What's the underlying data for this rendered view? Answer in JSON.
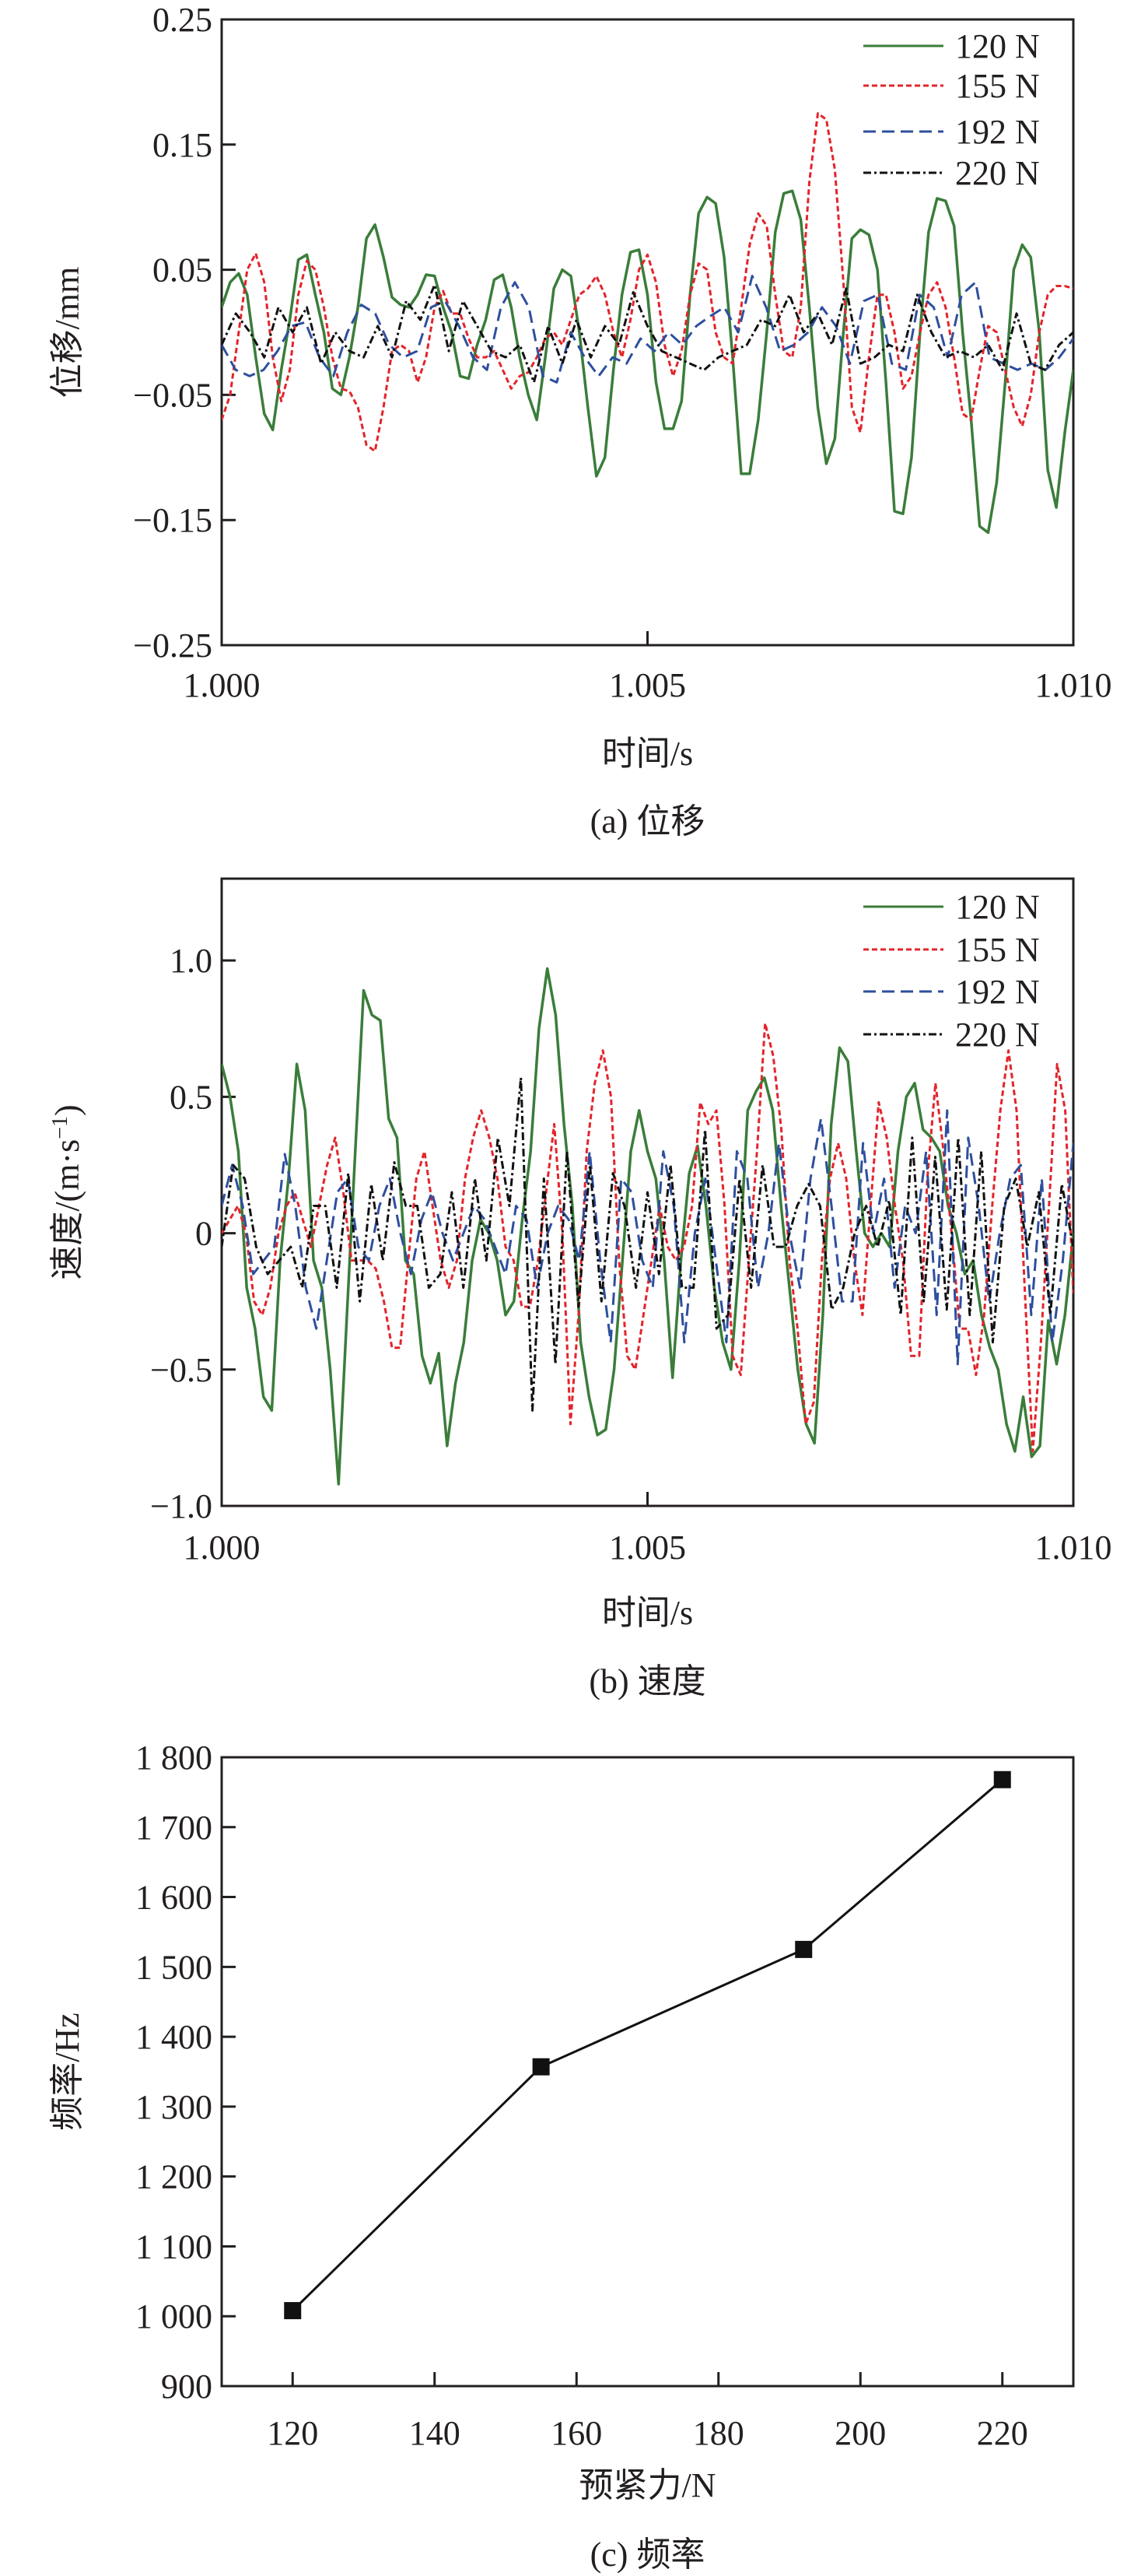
{
  "chart_data": [
    {
      "type": "line",
      "title": "",
      "caption": "(a) 位移",
      "xlabel": "时间/s",
      "ylabel": "位移/mm",
      "xlim": [
        1.0,
        1.01
      ],
      "ylim": [
        -0.25,
        0.25
      ],
      "xticks": [
        1.0,
        1.005,
        1.01
      ],
      "xtick_labels": [
        "1.000",
        "1.005",
        "1.010"
      ],
      "yticks": [
        0.25,
        0.15,
        0.05,
        -0.05,
        -0.15,
        -0.25
      ],
      "ytick_labels": [
        "0.25",
        "0.15",
        "0.05",
        "−0.05",
        "−0.15",
        "−0.25"
      ],
      "legend_position": "top-right",
      "grid": false,
      "series": [
        {
          "name": "120 N",
          "color": "#3a7d3a",
          "dash": "solid",
          "t_range": [
            1.0,
            1.01
          ],
          "values": [
            0.02,
            0.04,
            0.047,
            0.03,
            -0.02,
            -0.065,
            -0.078,
            -0.03,
            0.01,
            0.058,
            0.062,
            0.03,
            0.0,
            -0.045,
            -0.05,
            -0.02,
            0.02,
            0.075,
            0.086,
            0.06,
            0.028,
            0.022,
            0.02,
            0.03,
            0.046,
            0.045,
            0.02,
            0.0,
            -0.035,
            -0.037,
            -0.01,
            0.01,
            0.042,
            0.046,
            0.02,
            -0.02,
            -0.05,
            -0.07,
            -0.02,
            0.035,
            0.05,
            0.045,
            0.0,
            -0.06,
            -0.115,
            -0.1,
            -0.03,
            0.03,
            0.064,
            0.066,
            0.03,
            -0.04,
            -0.077,
            -0.077,
            -0.055,
            0.03,
            0.095,
            0.108,
            0.103,
            0.06,
            -0.02,
            -0.113,
            -0.113,
            -0.07,
            0.0,
            0.08,
            0.111,
            0.113,
            0.09,
            0.02,
            -0.06,
            -0.105,
            -0.085,
            0.0,
            0.075,
            0.082,
            0.078,
            0.05,
            -0.04,
            -0.143,
            -0.145,
            -0.1,
            0.0,
            0.08,
            0.107,
            0.105,
            0.085,
            0.0,
            -0.07,
            -0.155,
            -0.16,
            -0.12,
            -0.04,
            0.05,
            0.07,
            0.06,
            0.0,
            -0.11,
            -0.14,
            -0.08,
            -0.03
          ]
        },
        {
          "name": "155 N",
          "color": "#e3242b",
          "dash": "short",
          "t_range": [
            1.0,
            1.01
          ],
          "values": [
            -0.07,
            -0.05,
            0.0,
            0.05,
            0.063,
            0.04,
            -0.02,
            -0.055,
            -0.03,
            0.03,
            0.057,
            0.05,
            0.02,
            -0.02,
            -0.045,
            -0.047,
            -0.06,
            -0.09,
            -0.095,
            -0.06,
            -0.015,
            -0.01,
            -0.015,
            -0.04,
            -0.02,
            0.02,
            0.033,
            0.015,
            0.015,
            -0.005,
            -0.02,
            -0.02,
            -0.015,
            -0.03,
            -0.045,
            -0.035,
            -0.032,
            -0.02,
            -0.005,
            0.0,
            -0.01,
            0.01,
            0.03,
            0.035,
            0.045,
            0.03,
            0.0,
            -0.02,
            0.01,
            0.05,
            0.062,
            0.04,
            -0.01,
            -0.035,
            -0.015,
            0.03,
            0.055,
            0.05,
            0.0,
            -0.02,
            -0.025,
            0.02,
            0.07,
            0.095,
            0.085,
            0.03,
            -0.015,
            -0.02,
            0.02,
            0.12,
            0.175,
            0.17,
            0.13,
            0.04,
            -0.06,
            -0.08,
            -0.02,
            0.03,
            0.03,
            0.0,
            -0.045,
            -0.035,
            0.0,
            0.03,
            0.04,
            0.02,
            -0.02,
            -0.065,
            -0.07,
            -0.03,
            0.005,
            0.0,
            -0.03,
            -0.06,
            -0.075,
            -0.05,
            0.0,
            0.03,
            0.037,
            0.037,
            0.035
          ]
        },
        {
          "name": "192 N",
          "color": "#2e4f9e",
          "dash": "long",
          "t_range": [
            1.0,
            1.01
          ],
          "values": [
            -0.01,
            -0.03,
            -0.035,
            -0.03,
            -0.015,
            0.005,
            0.008,
            -0.02,
            -0.035,
            0.0,
            0.022,
            0.015,
            -0.01,
            -0.02,
            -0.015,
            0.02,
            0.025,
            0.005,
            -0.02,
            -0.03,
            0.02,
            0.04,
            0.02,
            -0.035,
            -0.04,
            0.0,
            -0.02,
            -0.035,
            -0.02,
            -0.025,
            -0.005,
            -0.015,
            0.0,
            -0.01,
            0.005,
            0.013,
            0.02,
            0.0,
            0.045,
            0.02,
            -0.015,
            -0.01,
            0.0,
            0.02,
            0.005,
            -0.025,
            0.025,
            0.03,
            -0.025,
            -0.03,
            0.03,
            0.02,
            -0.02,
            0.03,
            0.04,
            -0.02,
            -0.025,
            -0.03,
            -0.025,
            -0.03,
            -0.02,
            -0.005
          ]
        },
        {
          "name": "220 N",
          "color": "#111111",
          "dash": "dashdot",
          "t_range": [
            1.0,
            1.01
          ],
          "values": [
            -0.01,
            0.015,
            0.0,
            -0.02,
            0.02,
            0.0,
            0.02,
            -0.025,
            0.0,
            -0.015,
            -0.02,
            0.005,
            -0.02,
            0.025,
            0.01,
            0.038,
            -0.015,
            0.025,
            0.005,
            -0.015,
            -0.02,
            -0.01,
            -0.04,
            0.005,
            -0.025,
            0.01,
            -0.02,
            0.005,
            -0.01,
            0.032,
            0.005,
            -0.015,
            -0.02,
            -0.025,
            -0.03,
            -0.02,
            -0.015,
            -0.01,
            0.01,
            0.005,
            0.03,
            0.0,
            0.015,
            -0.01,
            0.035,
            -0.025,
            -0.02,
            -0.01,
            -0.015,
            0.03,
            0.0,
            -0.02,
            -0.015,
            -0.02,
            -0.01,
            -0.03,
            0.015,
            -0.025,
            -0.03,
            -0.01,
            0.0
          ]
        }
      ]
    },
    {
      "type": "line",
      "title": "",
      "caption": "(b) 速度",
      "xlabel": "时间/s",
      "ylabel": "速度/(m·s",
      "ylabel_sup": "−1",
      "ylabel_end": ")",
      "xlim": [
        1.0,
        1.01
      ],
      "ylim": [
        -1.0,
        1.3
      ],
      "xticks": [
        1.0,
        1.005,
        1.01
      ],
      "xtick_labels": [
        "1.000",
        "1.005",
        "1.010"
      ],
      "yticks": [
        1.0,
        0.5,
        0,
        -0.5,
        -1.0
      ],
      "ytick_labels": [
        "1.0",
        "0.5",
        "0",
        "−0.5",
        "−1.0"
      ],
      "legend_position": "top-right",
      "grid": false,
      "series": [
        {
          "name": "120 N",
          "color": "#3a7d3a",
          "dash": "solid",
          "t_range": [
            1.0,
            1.01
          ],
          "values": [
            0.62,
            0.5,
            0.3,
            -0.2,
            -0.35,
            -0.6,
            -0.65,
            -0.1,
            0.2,
            0.62,
            0.45,
            -0.1,
            -0.2,
            -0.5,
            -0.92,
            -0.3,
            0.3,
            0.89,
            0.8,
            0.78,
            0.42,
            0.35,
            -0.1,
            -0.15,
            -0.45,
            -0.55,
            -0.44,
            -0.78,
            -0.55,
            -0.4,
            -0.1,
            0.05,
            0.0,
            -0.1,
            -0.3,
            -0.25,
            0.05,
            0.3,
            0.75,
            0.97,
            0.8,
            0.4,
            0.1,
            -0.4,
            -0.6,
            -0.74,
            -0.72,
            -0.5,
            -0.1,
            0.3,
            0.45,
            0.3,
            0.2,
            -0.1,
            -0.53,
            -0.1,
            0.22,
            0.32,
            0.1,
            -0.2,
            -0.4,
            -0.5,
            -0.1,
            0.45,
            0.52,
            0.57,
            0.45,
            0.1,
            -0.2,
            -0.5,
            -0.7,
            -0.77,
            -0.3,
            0.4,
            0.68,
            0.63,
            0.3,
            0.0,
            -0.05,
            0.0,
            -0.05,
            0.3,
            0.5,
            0.55,
            0.38,
            0.35,
            0.3,
            0.1,
            0.0,
            -0.15,
            -0.1,
            -0.3,
            -0.42,
            -0.5,
            -0.7,
            -0.8,
            -0.6,
            -0.82,
            -0.78,
            -0.32,
            -0.48,
            -0.3,
            0.0
          ]
        },
        {
          "name": "155 N",
          "color": "#e3242b",
          "dash": "short",
          "t_range": [
            1.0,
            1.01
          ],
          "values": [
            0.0,
            0.05,
            0.1,
            0.0,
            -0.25,
            -0.3,
            -0.2,
            0.0,
            0.1,
            0.15,
            0.05,
            -0.05,
            0.1,
            0.25,
            0.35,
            0.15,
            -0.1,
            -0.1,
            -0.1,
            -0.13,
            -0.25,
            -0.42,
            -0.42,
            -0.1,
            0.2,
            0.3,
            0.1,
            -0.1,
            -0.2,
            -0.1,
            0.2,
            0.35,
            0.45,
            0.35,
            0.2,
            -0.05,
            -0.1,
            -0.27,
            -0.27,
            -0.1,
            0.15,
            0.4,
            0.0,
            -0.7,
            -0.3,
            0.3,
            0.55,
            0.67,
            0.5,
            -0.1,
            -0.45,
            -0.5,
            -0.3,
            -0.1,
            0.1,
            -0.05,
            -0.1,
            -0.05,
            0.1,
            0.48,
            0.4,
            0.45,
            0.1,
            -0.45,
            -0.52,
            -0.1,
            0.3,
            0.77,
            0.65,
            0.38,
            -0.1,
            -0.35,
            -0.7,
            -0.62,
            -0.1,
            0.2,
            0.33,
            0.2,
            -0.1,
            -0.3,
            0.1,
            0.48,
            0.35,
            0.1,
            -0.1,
            -0.45,
            -0.45,
            0.2,
            0.55,
            0.3,
            0.0,
            -0.35,
            -0.35,
            -0.52,
            -0.3,
            0.1,
            0.45,
            0.67,
            0.45,
            -0.2,
            -0.8,
            -0.4,
            0.1,
            0.62,
            0.45,
            -0.22
          ]
        },
        {
          "name": "192 N",
          "color": "#2e4f9e",
          "dash": "long",
          "t_range": [
            1.0,
            1.01
          ],
          "values": [
            0.1,
            0.25,
            0.1,
            -0.15,
            -0.1,
            -0.05,
            0.29,
            0.1,
            -0.2,
            -0.35,
            -0.1,
            0.15,
            0.2,
            -0.05,
            -0.1,
            0.1,
            0.2,
            0.0,
            -0.15,
            0.05,
            0.15,
            0.0,
            -0.1,
            0.0,
            0.1,
            0.05,
            -0.05,
            -0.15,
            0.1,
            0.05,
            -0.2,
            0.0,
            0.1,
            0.05,
            -0.1,
            0.3,
            -0.1,
            -0.4,
            0.2,
            0.15,
            -0.1,
            -0.2,
            0.3,
            0.1,
            -0.4,
            0.0,
            0.2,
            -0.1,
            -0.4,
            0.3,
            0.2,
            -0.2,
            0.0,
            0.33,
            0.0,
            -0.2,
            0.2,
            0.42,
            0.1,
            -0.25,
            -0.25,
            0.33,
            0.0,
            0.2,
            -0.2,
            0.1,
            0.0,
            0.3,
            -0.3,
            0.45,
            -0.48,
            0.35,
            0.1,
            -0.25,
            0.0,
            0.2,
            0.25,
            -0.3,
            0.2,
            -0.4,
            -0.1,
            0.33
          ]
        },
        {
          "name": "220 N",
          "color": "#111111",
          "dash": "dashdot",
          "t_range": [
            1.0,
            1.01
          ],
          "values": [
            -0.05,
            0.25,
            0.2,
            -0.05,
            -0.15,
            -0.1,
            -0.05,
            -0.2,
            0.1,
            0.1,
            -0.2,
            0.22,
            -0.25,
            0.18,
            -0.1,
            0.26,
            0.1,
            0.1,
            -0.2,
            -0.15,
            0.15,
            -0.2,
            0.2,
            -0.1,
            0.35,
            0.1,
            0.57,
            -0.65,
            0.2,
            -0.48,
            0.3,
            -0.27,
            0.25,
            -0.25,
            0.22,
            0.1,
            -0.2,
            0.15,
            -0.15,
            0.25,
            -0.2,
            -0.2,
            0.38,
            -0.35,
            -0.3,
            0.2,
            -0.2,
            0.25,
            -0.05,
            -0.05,
            0.1,
            0.18,
            0.1,
            -0.28,
            -0.2,
            0.0,
            0.1,
            -0.05,
            0.12,
            -0.3,
            0.35,
            -0.25,
            0.28,
            -0.28,
            0.35,
            -0.3,
            0.3,
            -0.4,
            0.1,
            0.2,
            -0.05,
            0.15,
            -0.3,
            0.18,
            -0.05
          ]
        }
      ]
    },
    {
      "type": "line",
      "title": "",
      "caption": "(c) 频率",
      "xlabel": "预紧力/N",
      "ylabel": "频率/Hz",
      "xlim": [
        110,
        230
      ],
      "ylim": [
        900,
        1800
      ],
      "xticks": [
        120,
        140,
        160,
        180,
        200,
        220
      ],
      "xtick_labels": [
        "120",
        "140",
        "160",
        "180",
        "200",
        "220"
      ],
      "yticks": [
        1800,
        1700,
        1600,
        1500,
        1400,
        1300,
        1200,
        1100,
        1000,
        900
      ],
      "ytick_labels": [
        "1 800",
        "1 700",
        "1 600",
        "1 500",
        "1 400",
        "1 300",
        "1 200",
        "1 100",
        "1 000",
        "900"
      ],
      "grid": false,
      "marker": "square",
      "series": [
        {
          "name": "频率",
          "color": "#111111",
          "x": [
            120,
            155,
            192,
            220
          ],
          "y": [
            1008,
            1357,
            1525,
            1768
          ]
        }
      ]
    }
  ]
}
